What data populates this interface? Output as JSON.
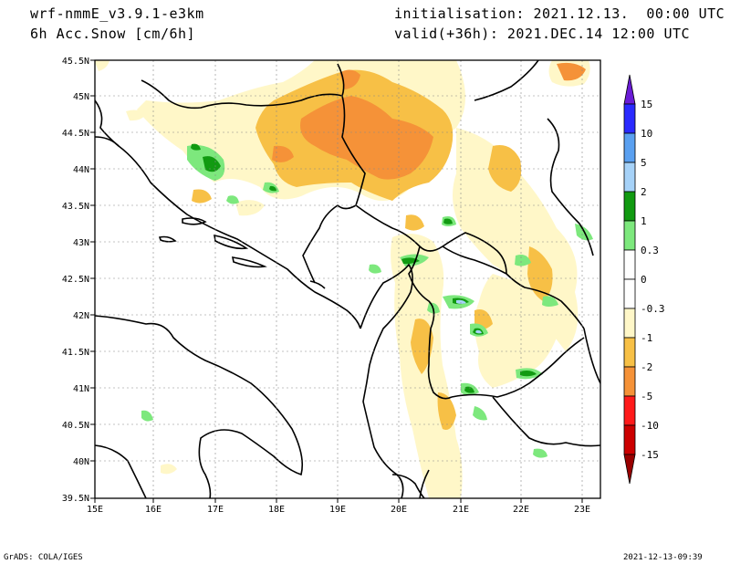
{
  "header": {
    "model": "wrf-nmmE_v3.9.1-e3km",
    "field": "6h Acc.Snow [cm/6h]",
    "init": "initialisation: 2021.12.13.  00:00 UTC",
    "valid": "valid(+36h): 2021.DEC.14 12:00 UTC"
  },
  "footer": {
    "credit": "GrADS: COLA/IGES",
    "timestamp": "2021-12-13-09:39"
  },
  "map": {
    "lon_labels": [
      "15E",
      "16E",
      "17E",
      "18E",
      "19E",
      "20E",
      "21E",
      "22E",
      "23E"
    ],
    "lat_labels": [
      "45.5N",
      "45N",
      "44.5N",
      "44N",
      "43.5N",
      "43N",
      "42.5N",
      "42N",
      "41.5N",
      "41N",
      "40.5N",
      "40N",
      "39.5N"
    ],
    "lon_range": [
      15,
      23.3
    ],
    "lat_range": [
      39.5,
      45.5
    ],
    "grid": true
  },
  "colorbar": {
    "labels": [
      "15",
      "10",
      "5",
      "2",
      "1",
      "0.3",
      "0",
      "-0.3",
      "-1",
      "-2",
      "-5",
      "-10",
      "-15"
    ],
    "colors": [
      "#6a1bd6",
      "#2a2aff",
      "#5aa0f0",
      "#a6d2f8",
      "#119a11",
      "#7de87d",
      "#ffffff",
      "#ffffff",
      "#fff7c8",
      "#f7c046",
      "#f59238",
      "#ff1a1a",
      "#cc0000",
      "#990000"
    ]
  }
}
